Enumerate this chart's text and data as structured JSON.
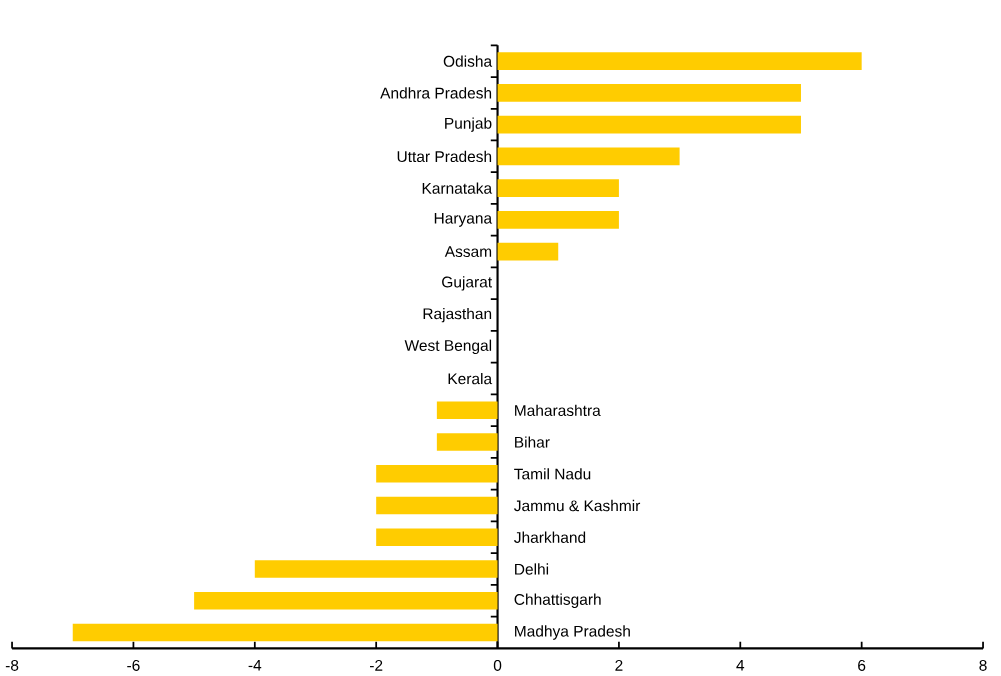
{
  "chart_data": {
    "type": "bar",
    "orientation": "horizontal",
    "categories": [
      "Odisha",
      "Andhra Pradesh",
      "Punjab",
      "Uttar Pradesh",
      "Karnataka",
      "Haryana",
      "Assam",
      "Gujarat",
      "Rajasthan",
      "West Bengal",
      "Kerala",
      "Maharashtra",
      "Bihar",
      "Tamil Nadu",
      "Jammu & Kashmir",
      "Jharkhand",
      "Delhi",
      "Chhattisgarh",
      "Madhya Pradesh"
    ],
    "values": [
      6,
      5,
      5,
      3,
      2,
      2,
      1,
      0,
      0,
      0,
      0,
      -1,
      -1,
      -2,
      -2,
      -2,
      -4,
      -5,
      -7
    ],
    "color": "#ffcc00",
    "xlim": [
      -8,
      8
    ],
    "xticks": [
      -8,
      -6,
      -4,
      -2,
      0,
      2,
      4,
      6,
      8
    ]
  }
}
